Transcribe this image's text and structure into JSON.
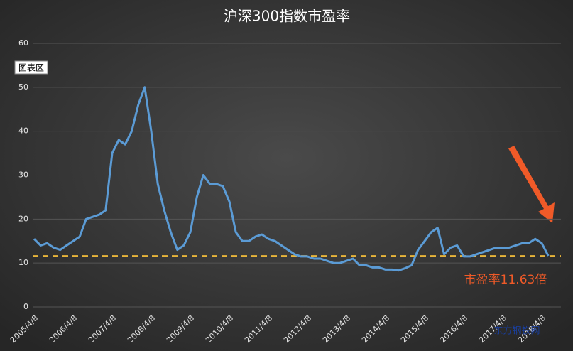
{
  "chart_data": {
    "type": "line",
    "title": "沪深300指数市盈率",
    "tooltip": "图表区",
    "annotation": "市盈率11.63倍",
    "watermark": "东方钢铁网",
    "categories": [
      "2005/4/8",
      null,
      null,
      null,
      null,
      null,
      "2006/4/8",
      null,
      null,
      null,
      null,
      null,
      "2007/4/8",
      null,
      null,
      null,
      null,
      null,
      "2008/4/8",
      null,
      null,
      null,
      null,
      null,
      "2009/4/8",
      null,
      null,
      null,
      null,
      null,
      "2010/4/8",
      null,
      null,
      null,
      null,
      null,
      "2011/4/8",
      null,
      null,
      null,
      null,
      null,
      "2012/4/8",
      null,
      null,
      null,
      null,
      null,
      "2013/4/8",
      null,
      null,
      null,
      null,
      null,
      "2014/4/8",
      null,
      null,
      null,
      null,
      null,
      "2015/4/8",
      null,
      null,
      null,
      null,
      null,
      "2016/4/8",
      null,
      null,
      null,
      null,
      null,
      "2017/4/8",
      null,
      null,
      null,
      null,
      null,
      "2018/4/8",
      null
    ],
    "series": [
      {
        "name": "市盈率",
        "color": "#5b9bd5",
        "values": [
          15.5,
          14,
          14.5,
          13.5,
          13,
          14,
          15,
          16,
          20,
          20.5,
          21,
          22,
          35,
          38,
          37,
          40,
          46,
          50,
          40,
          28,
          22,
          17,
          13,
          14,
          17,
          25,
          30,
          28,
          28,
          27.5,
          24,
          17,
          15,
          15,
          16,
          16.5,
          15.5,
          15,
          14,
          13,
          12,
          11.5,
          11.5,
          11,
          11,
          10.5,
          10,
          10,
          10.5,
          11,
          9.5,
          9.5,
          9,
          9,
          8.5,
          8.5,
          8.3,
          8.8,
          9.5,
          13,
          15,
          17,
          18,
          12,
          13.5,
          14,
          11.5,
          11.5,
          12,
          12.5,
          13,
          13.5,
          13.5,
          13.5,
          14,
          14.5,
          14.5,
          15.5,
          14.5,
          11.63
        ]
      }
    ],
    "reference_line": {
      "value": 11.63,
      "color": "#e8b53a"
    },
    "ylim": [
      0,
      60
    ],
    "yticks": [
      0,
      10,
      20,
      30,
      40,
      50,
      60
    ],
    "grid": true
  }
}
